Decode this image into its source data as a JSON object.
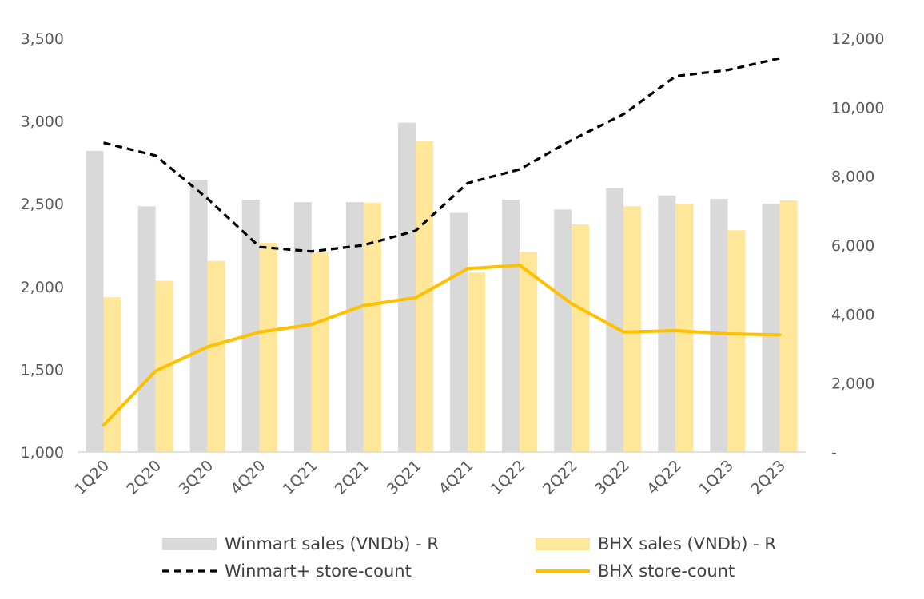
{
  "chart_data": {
    "type": "bar",
    "categories": [
      "1Q20",
      "2Q20",
      "3Q20",
      "4Q20",
      "1Q21",
      "2Q21",
      "3Q21",
      "4Q21",
      "1Q22",
      "2Q22",
      "3Q22",
      "4Q22",
      "1Q23",
      "2Q23"
    ],
    "y_left": {
      "ylim": [
        1000,
        3500
      ],
      "ticks": [
        1000,
        1500,
        2000,
        2500,
        3000,
        3500
      ],
      "tick_labels": [
        "1,000",
        "1,500",
        "2,000",
        "2,500",
        "3,000",
        "3,500"
      ]
    },
    "y_right": {
      "ylim": [
        0,
        12000
      ],
      "ticks": [
        0,
        2000,
        4000,
        6000,
        8000,
        10000,
        12000
      ],
      "tick_labels": [
        "-",
        "2,000",
        "4,000",
        "6,000",
        "8,000",
        "10,000",
        "12,000"
      ]
    },
    "series": [
      {
        "name": "Winmart sales (VNDb) - R",
        "kind": "bar",
        "axis": "left",
        "color": "#d9d9d9",
        "values": [
          2820,
          2485,
          2645,
          2525,
          2510,
          2510,
          2990,
          2445,
          2525,
          2465,
          2595,
          2550,
          2530,
          2500
        ]
      },
      {
        "name": "BHX sales (VNDb) - R",
        "kind": "bar",
        "axis": "left",
        "color": "#ffe699",
        "values": [
          1935,
          2035,
          2155,
          2265,
          2205,
          2505,
          2880,
          2085,
          2210,
          2375,
          2485,
          2500,
          2340,
          2520
        ]
      },
      {
        "name": "Winmart+ store-count",
        "kind": "line",
        "style": "dashed",
        "axis": "right",
        "color": "#000000",
        "values": [
          8970,
          8600,
          7350,
          5950,
          5820,
          6000,
          6420,
          7800,
          8200,
          9050,
          9800,
          10900,
          11080,
          11420
        ]
      },
      {
        "name": "BHX store-count",
        "kind": "line",
        "style": "solid",
        "axis": "right",
        "color": "#ffc000",
        "values": [
          780,
          2350,
          3050,
          3480,
          3700,
          4250,
          4480,
          5320,
          5420,
          4300,
          3480,
          3520,
          3430,
          3400
        ]
      }
    ],
    "title": "",
    "xlabel": "",
    "ylabel": "",
    "grid": false,
    "legend_position": "bottom"
  }
}
